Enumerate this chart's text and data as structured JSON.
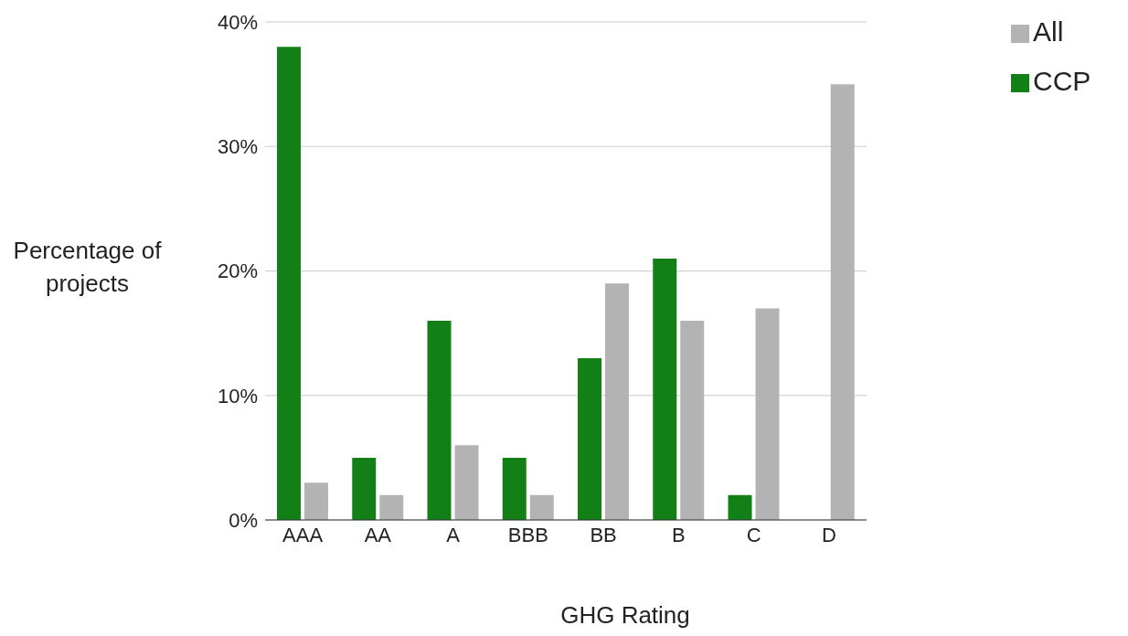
{
  "chart_data": {
    "type": "bar",
    "xlabel": "GHG Rating",
    "ylabel": "Percentage of projects",
    "categories": [
      "AAA",
      "AA",
      "A",
      "BBB",
      "BB",
      "B",
      "C",
      "D"
    ],
    "series": [
      {
        "name": "CCP",
        "color": "#137f17",
        "values": [
          38,
          5,
          16,
          5,
          13,
          21,
          2,
          0
        ]
      },
      {
        "name": "All",
        "color": "#b3b3b3",
        "values": [
          3,
          2,
          6,
          2,
          19,
          16,
          17,
          35
        ]
      }
    ],
    "ylim": [
      0,
      40
    ],
    "yticks": [
      {
        "value": 0,
        "label": "0%"
      },
      {
        "value": 10,
        "label": "10%"
      },
      {
        "value": 20,
        "label": "20%"
      },
      {
        "value": 30,
        "label": "30%"
      },
      {
        "value": 40,
        "label": "40%"
      }
    ],
    "grid": "y",
    "legend": "top right"
  }
}
